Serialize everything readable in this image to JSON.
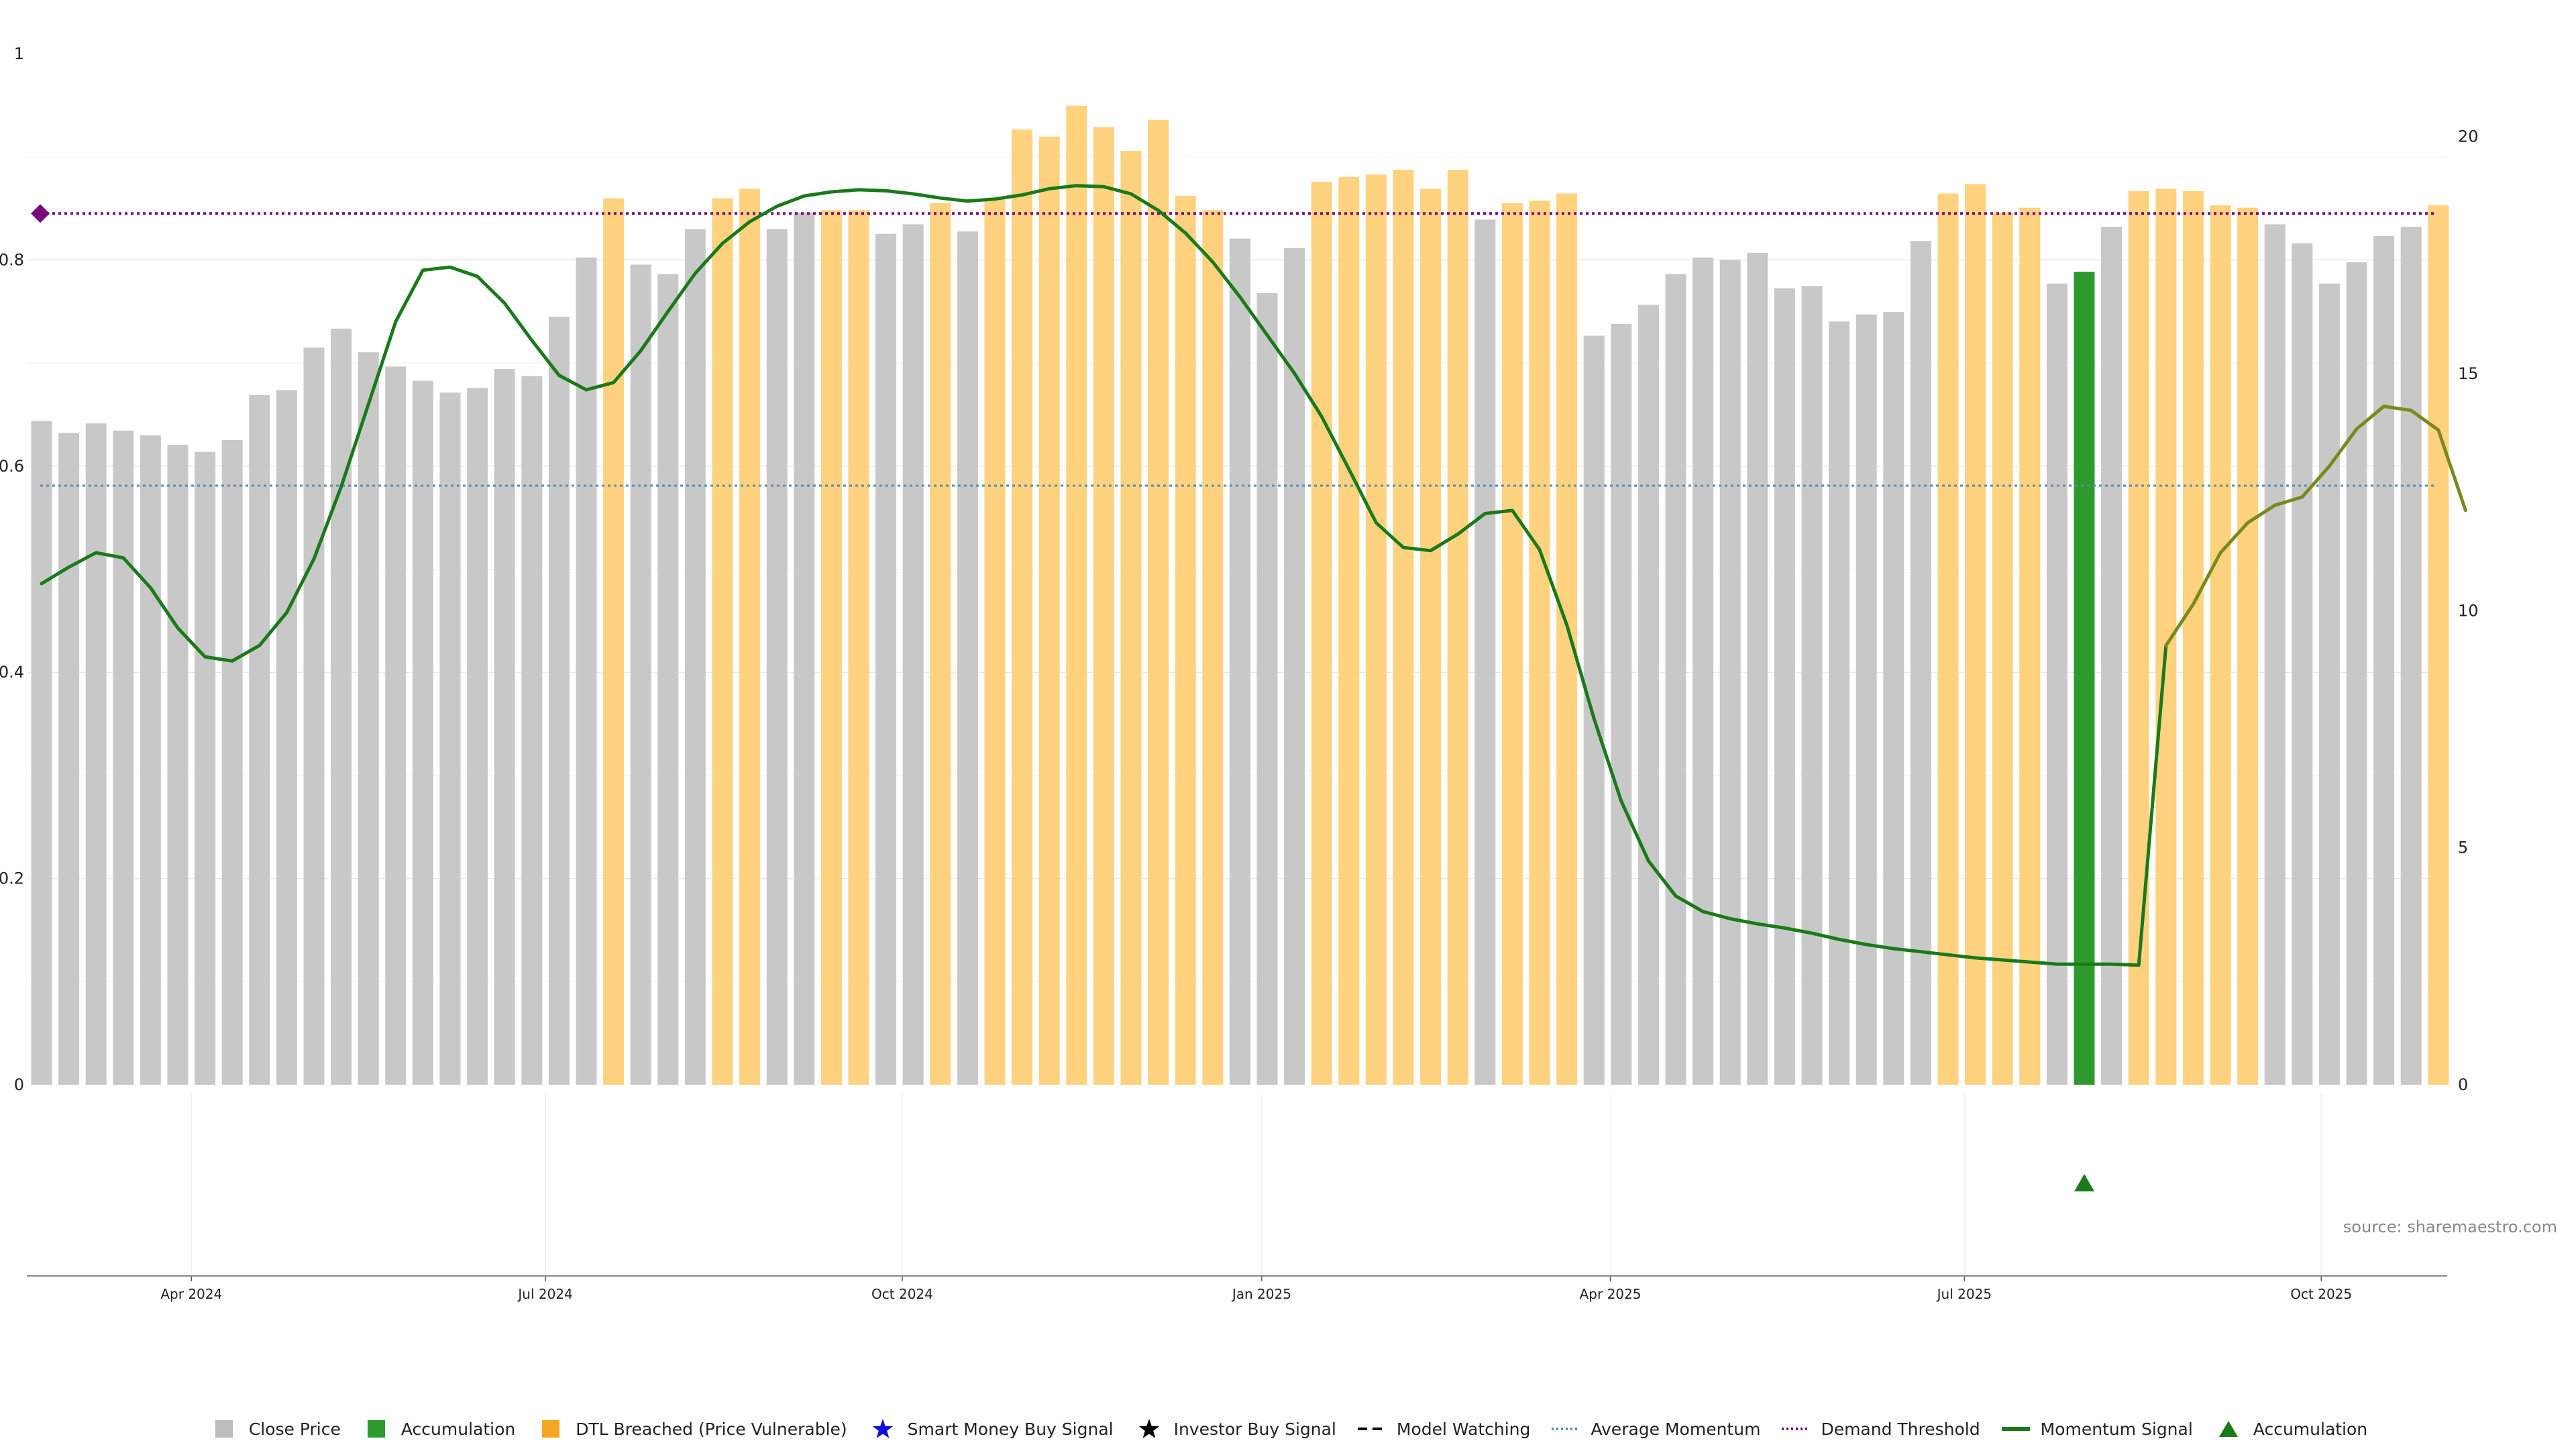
{
  "source": "source: sharemaestro.com",
  "colors": {
    "close": "#c8c8c8",
    "accumulation": "#2e9a2e",
    "dtl": "#ffd280",
    "smart_money": "#1010dd",
    "investor": "#000000",
    "model_watching": "#000000",
    "avg_momentum": "#5a8ab0",
    "demand": "#7a0a7a",
    "momentum": "#1a7a1a",
    "momentum_olive": "#7a8a1a"
  },
  "legend": [
    {
      "label": "Close Price",
      "symbol": "square",
      "color": "#bdbdbd"
    },
    {
      "label": "Accumulation",
      "symbol": "square",
      "color": "#2e9a2e"
    },
    {
      "label": "DTL Breached (Price Vulnerable)",
      "symbol": "square",
      "color": "#f5a623"
    },
    {
      "label": "Smart Money Buy Signal",
      "symbol": "star",
      "color": "#1010dd"
    },
    {
      "label": "Investor Buy Signal",
      "symbol": "star",
      "color": "#000000"
    },
    {
      "label": "Model Watching",
      "symbol": "dash",
      "color": "#000000"
    },
    {
      "label": "Average Momentum",
      "symbol": "dot",
      "color": "#5a8ab0"
    },
    {
      "label": "Demand Threshold",
      "symbol": "dot",
      "color": "#7a0a7a"
    },
    {
      "label": "Momentum Signal",
      "symbol": "line",
      "color": "#1a7a1a"
    },
    {
      "label": "Accumulation",
      "symbol": "triangle",
      "color": "#1a7a1a"
    }
  ],
  "chart_data": {
    "type": "bar",
    "left_axis": {
      "ticks": [
        "0",
        "0.2",
        "0.4",
        "0.6",
        "0.8",
        "1"
      ],
      "ylim": [
        0,
        1
      ]
    },
    "right_axis": {
      "ticks": [
        "0",
        "5",
        "10",
        "15",
        "20"
      ],
      "ylim": [
        0,
        21.75
      ]
    },
    "x_ticks": [
      {
        "label": "Apr 2024",
        "week": 5.5
      },
      {
        "label": "Jul 2024",
        "week": 18.5
      },
      {
        "label": "Oct 2024",
        "week": 31.6
      },
      {
        "label": "Jan 2025",
        "week": 44.8
      },
      {
        "label": "Apr 2025",
        "week": 57.6
      },
      {
        "label": "Jul 2025",
        "week": 70.6
      },
      {
        "label": "Oct 2025",
        "week": 83.7
      }
    ],
    "bars": [
      {
        "v": 14.0,
        "t": "c"
      },
      {
        "v": 13.75,
        "t": "c"
      },
      {
        "v": 13.95,
        "t": "c"
      },
      {
        "v": 13.8,
        "t": "c"
      },
      {
        "v": 13.7,
        "t": "c"
      },
      {
        "v": 13.5,
        "t": "c"
      },
      {
        "v": 13.35,
        "t": "c"
      },
      {
        "v": 13.6,
        "t": "c"
      },
      {
        "v": 14.55,
        "t": "c"
      },
      {
        "v": 14.65,
        "t": "c"
      },
      {
        "v": 15.55,
        "t": "c"
      },
      {
        "v": 15.95,
        "t": "c"
      },
      {
        "v": 15.45,
        "t": "c"
      },
      {
        "v": 15.15,
        "t": "c"
      },
      {
        "v": 14.85,
        "t": "c"
      },
      {
        "v": 14.6,
        "t": "c"
      },
      {
        "v": 14.7,
        "t": "c"
      },
      {
        "v": 15.1,
        "t": "c"
      },
      {
        "v": 14.95,
        "t": "c"
      },
      {
        "v": 16.2,
        "t": "c"
      },
      {
        "v": 17.45,
        "t": "c"
      },
      {
        "v": 18.7,
        "t": "d"
      },
      {
        "v": 17.3,
        "t": "c"
      },
      {
        "v": 17.1,
        "t": "c"
      },
      {
        "v": 18.05,
        "t": "c"
      },
      {
        "v": 18.7,
        "t": "d"
      },
      {
        "v": 18.9,
        "t": "d"
      },
      {
        "v": 18.05,
        "t": "c"
      },
      {
        "v": 18.4,
        "t": "c"
      },
      {
        "v": 18.45,
        "t": "d"
      },
      {
        "v": 18.45,
        "t": "d"
      },
      {
        "v": 17.95,
        "t": "c"
      },
      {
        "v": 18.15,
        "t": "c"
      },
      {
        "v": 18.6,
        "t": "d"
      },
      {
        "v": 18.0,
        "t": "c"
      },
      {
        "v": 18.7,
        "t": "d"
      },
      {
        "v": 20.15,
        "t": "d"
      },
      {
        "v": 20.0,
        "t": "d"
      },
      {
        "v": 20.65,
        "t": "d"
      },
      {
        "v": 20.2,
        "t": "d"
      },
      {
        "v": 19.7,
        "t": "d"
      },
      {
        "v": 20.35,
        "t": "d"
      },
      {
        "v": 18.75,
        "t": "d"
      },
      {
        "v": 18.45,
        "t": "d"
      },
      {
        "v": 17.85,
        "t": "c"
      },
      {
        "v": 16.7,
        "t": "c"
      },
      {
        "v": 17.65,
        "t": "c"
      },
      {
        "v": 19.05,
        "t": "d"
      },
      {
        "v": 19.15,
        "t": "d"
      },
      {
        "v": 19.2,
        "t": "d"
      },
      {
        "v": 19.3,
        "t": "d"
      },
      {
        "v": 18.9,
        "t": "d"
      },
      {
        "v": 19.3,
        "t": "d"
      },
      {
        "v": 18.25,
        "t": "c"
      },
      {
        "v": 18.6,
        "t": "d"
      },
      {
        "v": 18.65,
        "t": "d"
      },
      {
        "v": 18.8,
        "t": "d"
      },
      {
        "v": 15.8,
        "t": "c"
      },
      {
        "v": 16.05,
        "t": "c"
      },
      {
        "v": 16.45,
        "t": "c"
      },
      {
        "v": 17.1,
        "t": "c"
      },
      {
        "v": 17.45,
        "t": "c"
      },
      {
        "v": 17.4,
        "t": "c"
      },
      {
        "v": 17.55,
        "t": "c"
      },
      {
        "v": 16.8,
        "t": "c"
      },
      {
        "v": 16.85,
        "t": "c"
      },
      {
        "v": 16.1,
        "t": "c"
      },
      {
        "v": 16.25,
        "t": "c"
      },
      {
        "v": 16.3,
        "t": "c"
      },
      {
        "v": 17.8,
        "t": "c"
      },
      {
        "v": 18.8,
        "t": "d"
      },
      {
        "v": 19.0,
        "t": "d"
      },
      {
        "v": 18.4,
        "t": "d"
      },
      {
        "v": 18.5,
        "t": "d"
      },
      {
        "v": 16.9,
        "t": "c"
      },
      {
        "v": 17.15,
        "t": "a"
      },
      {
        "v": 18.1,
        "t": "c"
      },
      {
        "v": 18.85,
        "t": "d"
      },
      {
        "v": 18.9,
        "t": "d"
      },
      {
        "v": 18.85,
        "t": "d"
      },
      {
        "v": 18.55,
        "t": "d"
      },
      {
        "v": 18.5,
        "t": "d"
      },
      {
        "v": 18.15,
        "t": "c"
      },
      {
        "v": 17.75,
        "t": "c"
      },
      {
        "v": 16.9,
        "t": "c"
      },
      {
        "v": 17.35,
        "t": "c"
      },
      {
        "v": 17.9,
        "t": "c"
      },
      {
        "v": 18.1,
        "t": "c"
      },
      {
        "v": 18.55,
        "t": "d"
      }
    ],
    "momentum": [
      0.486,
      0.502,
      0.516,
      0.511,
      0.482,
      0.443,
      0.415,
      0.411,
      0.426,
      0.458,
      0.51,
      0.58,
      0.66,
      0.74,
      0.79,
      0.793,
      0.784,
      0.758,
      0.722,
      0.688,
      0.674,
      0.681,
      0.712,
      0.75,
      0.787,
      0.816,
      0.837,
      0.852,
      0.862,
      0.866,
      0.868,
      0.867,
      0.864,
      0.86,
      0.857,
      0.859,
      0.863,
      0.869,
      0.872,
      0.871,
      0.864,
      0.848,
      0.826,
      0.798,
      0.764,
      0.727,
      0.69,
      0.648,
      0.597,
      0.545,
      0.521,
      0.518,
      0.534,
      0.554,
      0.557,
      0.519,
      0.446,
      0.355,
      0.275,
      0.217,
      0.183,
      0.168,
      0.161,
      0.156,
      0.152,
      0.147,
      0.141,
      0.136,
      0.132,
      0.129,
      0.126,
      0.123,
      0.121,
      0.119,
      0.117,
      0.117,
      0.117,
      0.116,
      0.426,
      0.466,
      0.516,
      0.545,
      0.562,
      0.57,
      0.6,
      0.636,
      0.658,
      0.654,
      0.635,
      0.557
    ],
    "momentum_split_index": 78,
    "average_momentum": 0.581,
    "demand_threshold": 0.845,
    "accumulation_marker_week": 75
  }
}
